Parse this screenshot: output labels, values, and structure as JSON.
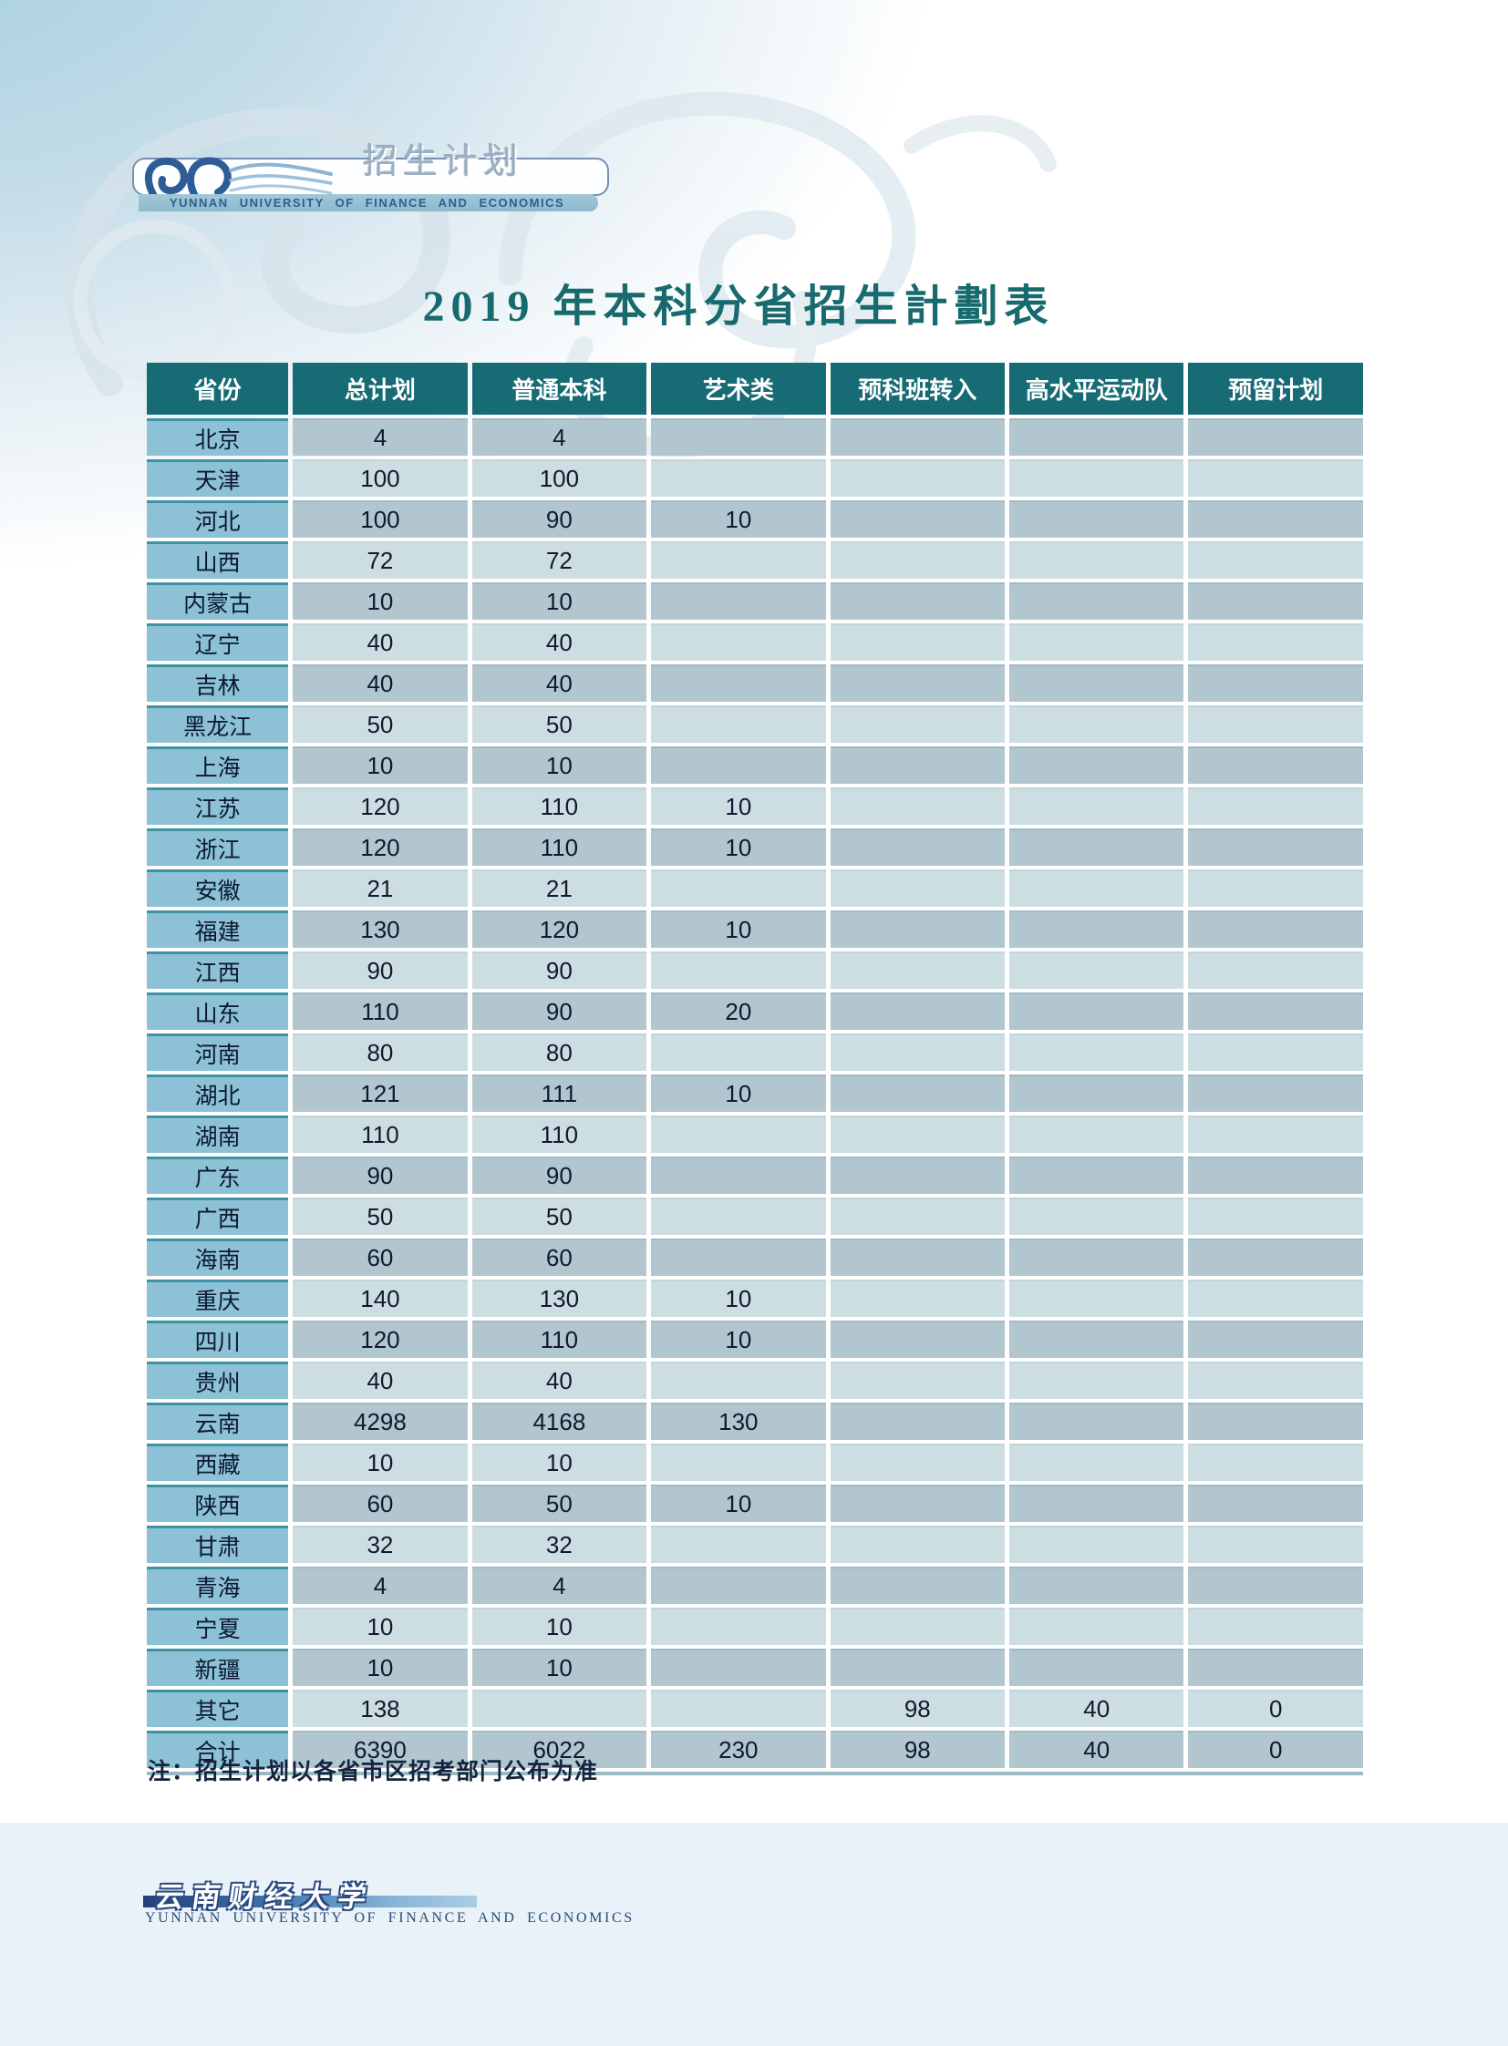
{
  "page": {
    "tab_label": "招生计划",
    "logo_caption": "YUNNAN UNIVERSITY OF FINANCE AND ECONOMICS",
    "title": "2019 年本科分省招生計劃表",
    "note": "注：招生计划以各省市区招考部门公布为准",
    "footer": {
      "cn_name": "云南财经大学",
      "en_name": "YUNNAN UNIVERSITY OF FINANCE AND ECONOMICS"
    }
  },
  "colors": {
    "header_teal": "#176b74",
    "row_dark": "#b1c6cf",
    "row_light": "#cddee2",
    "province_blue": "#8dc1d6",
    "title_teal": "#176a6d",
    "footer_navy": "#23407c",
    "top_gradient_blue": "#a7cfdf"
  },
  "table": {
    "columns": [
      "省份",
      "总计划",
      "普通本科",
      "艺术类",
      "预科班转入",
      "高水平运动队",
      "预留计划"
    ],
    "rows": [
      [
        "北京",
        "4",
        "4",
        "",
        "",
        "",
        ""
      ],
      [
        "天津",
        "100",
        "100",
        "",
        "",
        "",
        ""
      ],
      [
        "河北",
        "100",
        "90",
        "10",
        "",
        "",
        ""
      ],
      [
        "山西",
        "72",
        "72",
        "",
        "",
        "",
        ""
      ],
      [
        "内蒙古",
        "10",
        "10",
        "",
        "",
        "",
        ""
      ],
      [
        "辽宁",
        "40",
        "40",
        "",
        "",
        "",
        ""
      ],
      [
        "吉林",
        "40",
        "40",
        "",
        "",
        "",
        ""
      ],
      [
        "黑龙江",
        "50",
        "50",
        "",
        "",
        "",
        ""
      ],
      [
        "上海",
        "10",
        "10",
        "",
        "",
        "",
        ""
      ],
      [
        "江苏",
        "120",
        "110",
        "10",
        "",
        "",
        ""
      ],
      [
        "浙江",
        "120",
        "110",
        "10",
        "",
        "",
        ""
      ],
      [
        "安徽",
        "21",
        "21",
        "",
        "",
        "",
        ""
      ],
      [
        "福建",
        "130",
        "120",
        "10",
        "",
        "",
        ""
      ],
      [
        "江西",
        "90",
        "90",
        "",
        "",
        "",
        ""
      ],
      [
        "山东",
        "110",
        "90",
        "20",
        "",
        "",
        ""
      ],
      [
        "河南",
        "80",
        "80",
        "",
        "",
        "",
        ""
      ],
      [
        "湖北",
        "121",
        "111",
        "10",
        "",
        "",
        ""
      ],
      [
        "湖南",
        "110",
        "110",
        "",
        "",
        "",
        ""
      ],
      [
        "广东",
        "90",
        "90",
        "",
        "",
        "",
        ""
      ],
      [
        "广西",
        "50",
        "50",
        "",
        "",
        "",
        ""
      ],
      [
        "海南",
        "60",
        "60",
        "",
        "",
        "",
        ""
      ],
      [
        "重庆",
        "140",
        "130",
        "10",
        "",
        "",
        ""
      ],
      [
        "四川",
        "120",
        "110",
        "10",
        "",
        "",
        ""
      ],
      [
        "贵州",
        "40",
        "40",
        "",
        "",
        "",
        ""
      ],
      [
        "云南",
        "4298",
        "4168",
        "130",
        "",
        "",
        ""
      ],
      [
        "西藏",
        "10",
        "10",
        "",
        "",
        "",
        ""
      ],
      [
        "陕西",
        "60",
        "50",
        "10",
        "",
        "",
        ""
      ],
      [
        "甘肃",
        "32",
        "32",
        "",
        "",
        "",
        ""
      ],
      [
        "青海",
        "4",
        "4",
        "",
        "",
        "",
        ""
      ],
      [
        "宁夏",
        "10",
        "10",
        "",
        "",
        "",
        ""
      ],
      [
        "新疆",
        "10",
        "10",
        "",
        "",
        "",
        ""
      ],
      [
        "其它",
        "138",
        "",
        "",
        "98",
        "40",
        "0"
      ],
      [
        "合计",
        "6390",
        "6022",
        "230",
        "98",
        "40",
        "0"
      ]
    ]
  }
}
